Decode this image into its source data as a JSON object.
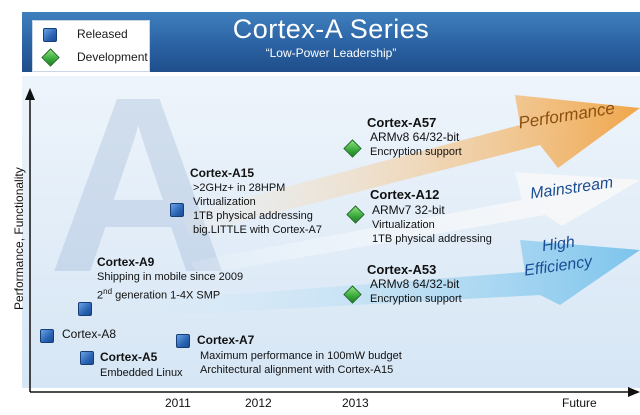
{
  "title": "Cortex-A Series",
  "subtitle": "“Low-Power Leadership”",
  "legend": {
    "released": "Released",
    "development": "Development"
  },
  "y_axis_label": "Performance, Functionality",
  "x_ticks": [
    "2011",
    "2012",
    "2013",
    "Future"
  ],
  "arrows": {
    "performance": "Performance",
    "mainstream": "Mainstream",
    "high": "High",
    "efficiency": "Efficiency"
  },
  "colors": {
    "title_bar": "#2b62a3",
    "released_marker": "#2a64b4",
    "development_marker": "#39a93a",
    "performance_arrow": "#f0a64a",
    "mainstream_arrow": "#f4f4f4",
    "efficiency_arrow": "#7cc4ec"
  },
  "cores": {
    "a57": {
      "name": "Cortex-A57",
      "arch": "ARMv8 64/32-bit",
      "line1": "Encryption support"
    },
    "a15": {
      "name": "Cortex-A15",
      "line1": ">2GHz+ in 28HPM",
      "line2": "Virtualization",
      "line3": "1TB physical addressing",
      "line4": "big.LITTLE with Cortex-A7"
    },
    "a12": {
      "name": "Cortex-A12",
      "arch": "ARMv7 32-bit",
      "line1": "Virtualization",
      "line2": "1TB physical addressing"
    },
    "a9": {
      "name": "Cortex-A9",
      "line1": "Shipping in mobile since 2009",
      "line2_num": "2",
      "line2_sup": "nd",
      "line2_rest": " generation 1-4X SMP"
    },
    "a53": {
      "name": "Cortex-A53",
      "arch": "ARMv8 64/32-bit",
      "line1": "Encryption support"
    },
    "a8": {
      "name": "Cortex-A8"
    },
    "a5": {
      "name": "Cortex-A5",
      "line1": "Embedded  Linux"
    },
    "a7": {
      "name": "Cortex-A7",
      "line1": "Maximum performance in 100mW budget",
      "line2": "Architectural alignment with Cortex-A15"
    }
  }
}
